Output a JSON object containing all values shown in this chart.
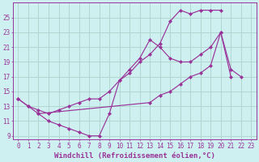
{
  "xlabel": "Windchill (Refroidissement éolien,°C)",
  "bg_color": "#cff0f0",
  "line_color": "#993399",
  "grid_color": "#b0d8d0",
  "series": [
    {
      "x": [
        0,
        1,
        2,
        3,
        4,
        5,
        6,
        7,
        8,
        9,
        10,
        11,
        12,
        13,
        14,
        15,
        16,
        17,
        18,
        19,
        20,
        21
      ],
      "y": [
        14,
        13,
        12,
        11,
        10.5,
        10,
        9.5,
        9,
        9,
        12,
        16.5,
        18,
        19.5,
        22,
        21,
        19.5,
        19,
        19,
        20,
        21,
        23,
        17
      ]
    },
    {
      "x": [
        0,
        1,
        2,
        3,
        4,
        5,
        6,
        7,
        8,
        9,
        10,
        11,
        12,
        13,
        14,
        15,
        16,
        17,
        18,
        19,
        20
      ],
      "y": [
        14,
        13,
        12.5,
        12,
        12.5,
        13,
        13.5,
        14,
        14,
        15,
        16.5,
        17.5,
        19,
        20,
        21.5,
        24.5,
        26,
        25.5,
        26,
        26,
        26
      ]
    },
    {
      "x": [
        2,
        13,
        14,
        15,
        16,
        17,
        18,
        19,
        20,
        21,
        22
      ],
      "y": [
        12,
        13.5,
        14.5,
        15,
        16,
        17,
        17.5,
        18.5,
        23,
        18,
        17
      ]
    }
  ],
  "xlim": [
    -0.5,
    23.5
  ],
  "ylim": [
    8.5,
    27
  ],
  "xticks": [
    0,
    1,
    2,
    3,
    4,
    5,
    6,
    7,
    8,
    9,
    10,
    11,
    12,
    13,
    14,
    15,
    16,
    17,
    18,
    19,
    20,
    21,
    22,
    23
  ],
  "yticks": [
    9,
    11,
    13,
    15,
    17,
    19,
    21,
    23,
    25
  ],
  "tick_fontsize": 5.5,
  "xlabel_fontsize": 6.5
}
